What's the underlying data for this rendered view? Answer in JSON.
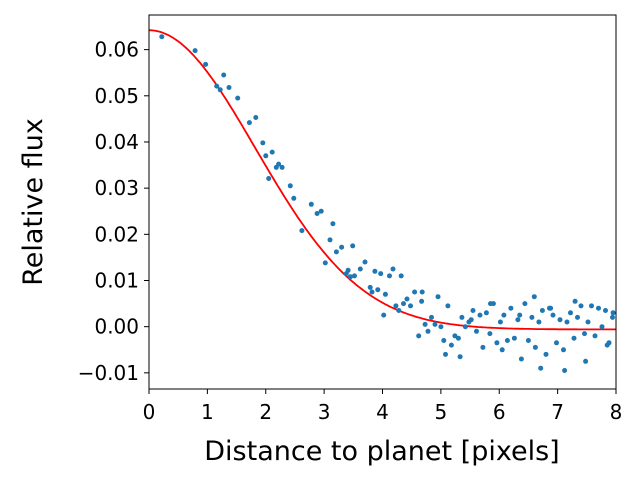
{
  "chart_data": {
    "type": "scatter",
    "title": "",
    "xlabel": "Distance to planet [pixels]",
    "ylabel": "Relative flux",
    "xlim": [
      0,
      8
    ],
    "ylim": [
      -0.0135,
      0.0675
    ],
    "x_ticks": [
      0,
      1,
      2,
      3,
      4,
      5,
      6,
      7,
      8
    ],
    "x_tick_labels": [
      "0",
      "1",
      "2",
      "3",
      "4",
      "5",
      "6",
      "7",
      "8"
    ],
    "y_ticks": [
      -0.01,
      0.0,
      0.01,
      0.02,
      0.03,
      0.04,
      0.05,
      0.06
    ],
    "y_tick_labels": [
      "−0.01",
      "0.00",
      "0.01",
      "0.02",
      "0.03",
      "0.04",
      "0.05",
      "0.06"
    ],
    "grid": false,
    "legend": "none",
    "colors": {
      "points": "#1f77b4",
      "fit": "#ff0000"
    },
    "series": [
      {
        "type": "scatter",
        "x": [
          0.22,
          0.79,
          0.97,
          1.16,
          1.22,
          1.28,
          1.37,
          1.52,
          1.72,
          1.83,
          1.95,
          2.0,
          2.05,
          2.11,
          2.18,
          2.22,
          2.28,
          2.42,
          2.48,
          2.62,
          2.78,
          2.88,
          2.95,
          3.02,
          3.1,
          3.15,
          3.21,
          3.3,
          3.38,
          3.41,
          3.45,
          3.49,
          3.52,
          3.62,
          3.7,
          3.79,
          3.82,
          3.87,
          3.92,
          3.97,
          4.02,
          4.05,
          4.12,
          4.18,
          4.23,
          4.28,
          4.32,
          4.36,
          4.42,
          4.48,
          4.55,
          4.62,
          4.68,
          4.73,
          4.78,
          4.84,
          4.9,
          4.95,
          5.0,
          5.05,
          5.12,
          5.18,
          5.24,
          5.3,
          5.36,
          5.42,
          5.48,
          5.55,
          5.61,
          5.67,
          5.72,
          5.78,
          5.84,
          5.9,
          5.96,
          6.02,
          6.08,
          6.14,
          6.2,
          6.26,
          6.32,
          6.38,
          6.44,
          6.5,
          6.56,
          6.62,
          6.68,
          6.74,
          6.8,
          6.86,
          6.92,
          6.98,
          7.04,
          7.1,
          7.16,
          7.22,
          7.28,
          7.34,
          7.4,
          7.46,
          7.52,
          7.58,
          7.64,
          7.7,
          7.76,
          7.82,
          7.88,
          7.94,
          5.08,
          5.52,
          6.05,
          6.35,
          6.71,
          7.12,
          7.48,
          7.85,
          5.33,
          6.88,
          4.67,
          5.85,
          6.6,
          7.3,
          7.95
        ],
        "y": [
          0.0628,
          0.0598,
          0.0568,
          0.0521,
          0.0513,
          0.0545,
          0.0518,
          0.0495,
          0.0442,
          0.0453,
          0.0398,
          0.037,
          0.0321,
          0.0378,
          0.0345,
          0.0352,
          0.0345,
          0.0305,
          0.0278,
          0.0208,
          0.0265,
          0.0245,
          0.025,
          0.0138,
          0.0188,
          0.0223,
          0.0162,
          0.0172,
          0.0115,
          0.0122,
          0.0108,
          0.0175,
          0.011,
          0.0125,
          0.014,
          0.0085,
          0.0075,
          0.012,
          0.008,
          0.0115,
          0.0025,
          0.007,
          0.011,
          0.0125,
          0.0045,
          0.0035,
          0.011,
          0.005,
          0.006,
          0.0045,
          0.0075,
          -0.002,
          0.0075,
          0.0005,
          -0.001,
          0.002,
          0.0005,
          0.0065,
          0.0,
          -0.003,
          0.0045,
          -0.004,
          -0.002,
          -0.0025,
          0.002,
          0.0,
          0.001,
          0.0035,
          -0.001,
          0.0025,
          -0.0045,
          0.003,
          -0.0015,
          0.005,
          -0.0035,
          0.001,
          0.0025,
          -0.003,
          0.004,
          -0.0025,
          0.0015,
          -0.007,
          0.005,
          -0.003,
          0.002,
          -0.0045,
          0.001,
          0.0035,
          -0.006,
          0.004,
          0.0025,
          -0.0035,
          0.0015,
          -0.005,
          0.001,
          0.003,
          -0.0025,
          0.002,
          0.0045,
          -0.0015,
          0.001,
          0.0045,
          -0.002,
          0.004,
          0.0,
          0.0035,
          -0.0035,
          0.002,
          -0.006,
          0.0015,
          -0.005,
          0.0025,
          -0.009,
          -0.0095,
          -0.0075,
          -0.004,
          -0.0065,
          0.004,
          0.0055,
          0.005,
          0.0065,
          0.0055,
          0.003
        ],
        "point_size": 4
      },
      {
        "type": "line",
        "name": "fit",
        "model": "gaussian",
        "amplitude": 0.0648,
        "sigma": 1.82,
        "offset": -0.0006,
        "x_range": [
          0,
          8
        ]
      }
    ]
  }
}
